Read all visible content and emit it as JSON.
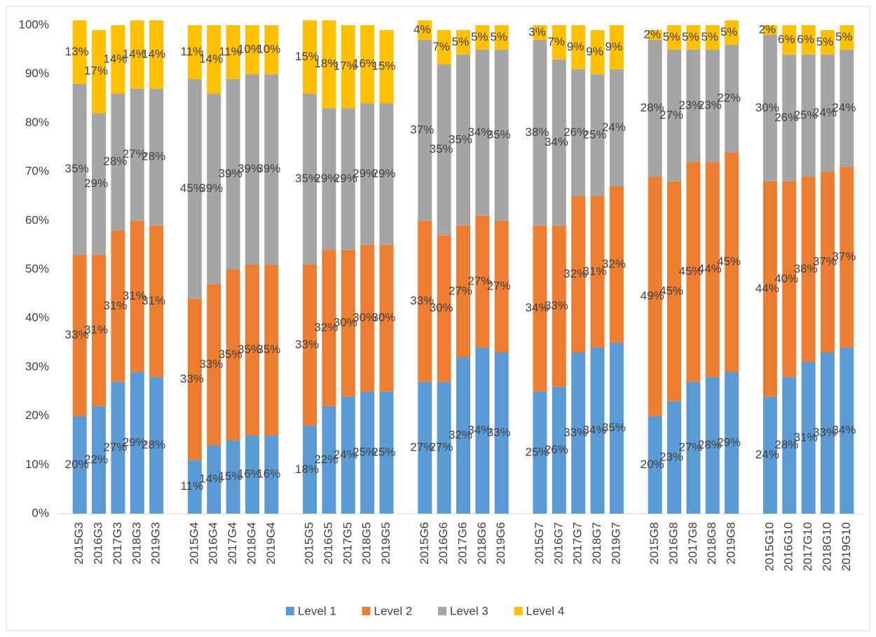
{
  "chart_data": {
    "type": "stacked_bar",
    "categories": [
      "2015G3",
      "2016G3",
      "2017G3",
      "2018G3",
      "2019G3",
      null,
      "2015G4",
      "2016G4",
      "2017G4",
      "2018G4",
      "2019G4",
      null,
      "2015G5",
      "2016G5",
      "2017G5",
      "2018G5",
      "2019G5",
      null,
      "2015G6",
      "2016G6",
      "2017G6",
      "2018G6",
      "2019G6",
      null,
      "2015G7",
      "2016G7",
      "2017G7",
      "2018G7",
      "2019G7",
      null,
      "2015G8",
      "2016G8",
      "2017G8",
      "2018G8",
      "2019G8",
      null,
      "2015G10",
      "2016G10",
      "2017G10",
      "2018G10",
      "2019G10"
    ],
    "series": [
      {
        "name": "Level 1",
        "color": "#5b9bd5",
        "values": [
          20,
          22,
          27,
          29,
          28,
          null,
          11,
          14,
          15,
          16,
          16,
          null,
          18,
          22,
          24,
          25,
          25,
          null,
          27,
          27,
          32,
          34,
          33,
          null,
          25,
          26,
          33,
          34,
          35,
          null,
          20,
          23,
          27,
          28,
          29,
          null,
          24,
          28,
          31,
          33,
          34
        ],
        "value_labels": [
          "20%",
          "22%",
          "27%",
          "29%",
          "28%",
          null,
          "11%",
          "14%",
          "15%",
          "16%",
          "16%",
          null,
          "18%",
          "22%",
          "24%",
          "25%",
          "25%",
          null,
          "27%",
          "27%",
          "32%",
          "34%",
          "33%",
          null,
          "25%",
          "26%",
          "33%",
          "34%",
          "35%",
          null,
          "20%",
          "23%",
          "27%",
          "28%",
          "29%",
          null,
          "24%",
          "28%",
          "31%",
          "33%",
          "34%"
        ]
      },
      {
        "name": "Level 2",
        "color": "#ed7d31",
        "values": [
          33,
          31,
          31,
          31,
          31,
          null,
          33,
          33,
          35,
          35,
          35,
          null,
          33,
          32,
          30,
          30,
          30,
          null,
          33,
          30,
          27,
          27,
          27,
          null,
          34,
          33,
          32,
          31,
          32,
          null,
          49,
          45,
          45,
          44,
          45,
          null,
          44,
          40,
          38,
          37,
          37
        ],
        "value_labels": [
          "33%",
          "31%",
          "31%",
          "31%",
          "31%",
          null,
          "33%",
          "33%",
          "35%",
          "35%",
          "35%",
          null,
          "33%",
          "32%",
          "30%",
          "30%",
          "30%",
          null,
          "33%",
          "30%",
          "27%",
          "27%",
          "27%",
          null,
          "34%",
          "33%",
          "32%",
          "31%",
          "32%",
          null,
          "49%",
          "45%",
          "45%",
          "44%",
          "45%",
          null,
          "44%",
          "40%",
          "38%",
          "37%",
          "37%"
        ]
      },
      {
        "name": "Level 3",
        "color": "#a5a5a5",
        "values": [
          35,
          29,
          28,
          27,
          28,
          null,
          45,
          39,
          39,
          39,
          39,
          null,
          35,
          29,
          29,
          29,
          29,
          null,
          37,
          35,
          35,
          34,
          35,
          null,
          38,
          34,
          26,
          25,
          24,
          null,
          28,
          27,
          23,
          23,
          22,
          null,
          30,
          26,
          25,
          24,
          24
        ],
        "value_labels": [
          "35%",
          "29%",
          "28%",
          "27%",
          "28%",
          null,
          "45%",
          "39%",
          "39%",
          "39%",
          "39%",
          null,
          "35%",
          "29%",
          "29%",
          "29%",
          "29%",
          null,
          "37%",
          "35%",
          "35%",
          "34%",
          "35%",
          null,
          "38%",
          "34%",
          "26%",
          "25%",
          "24%",
          null,
          "28%",
          "27%",
          "23%",
          "23%",
          "22%",
          null,
          "30%",
          "26%",
          "25%",
          "24%",
          "24%"
        ]
      },
      {
        "name": "Level 4",
        "color": "#ffc000",
        "values": [
          13,
          17,
          14,
          14,
          14,
          null,
          11,
          14,
          11,
          10,
          10,
          null,
          15,
          18,
          17,
          16,
          15,
          null,
          4,
          7,
          5,
          5,
          5,
          null,
          3,
          7,
          9,
          9,
          9,
          null,
          2,
          5,
          5,
          5,
          5,
          null,
          2,
          6,
          6,
          5,
          5
        ],
        "value_labels": [
          "13%",
          "17%",
          "14%",
          "14%",
          "14%",
          null,
          "11%",
          "14%",
          "11%",
          "10%",
          "10%",
          null,
          "15%",
          "18%",
          "17%",
          "16%",
          "15%",
          null,
          "4%",
          "7%",
          "5%",
          "5%",
          "5%",
          null,
          "3%",
          "7%",
          "9%",
          "9%",
          "9%",
          null,
          "2%",
          "5%",
          "5%",
          "5%",
          "5%",
          null,
          "2%",
          "6%",
          "6%",
          "5%",
          "5%"
        ]
      }
    ],
    "ylim": [
      0,
      100
    ],
    "yticks": [
      {
        "value": 0,
        "label": "0%"
      },
      {
        "value": 10,
        "label": "10%"
      },
      {
        "value": 20,
        "label": "20%"
      },
      {
        "value": 30,
        "label": "30%"
      },
      {
        "value": 40,
        "label": "40%"
      },
      {
        "value": 50,
        "label": "50%"
      },
      {
        "value": 60,
        "label": "60%"
      },
      {
        "value": 70,
        "label": "70%"
      },
      {
        "value": 80,
        "label": "80%"
      },
      {
        "value": 90,
        "label": "90%"
      },
      {
        "value": 100,
        "label": "100%"
      }
    ],
    "grid": false,
    "legend": "bottom"
  }
}
